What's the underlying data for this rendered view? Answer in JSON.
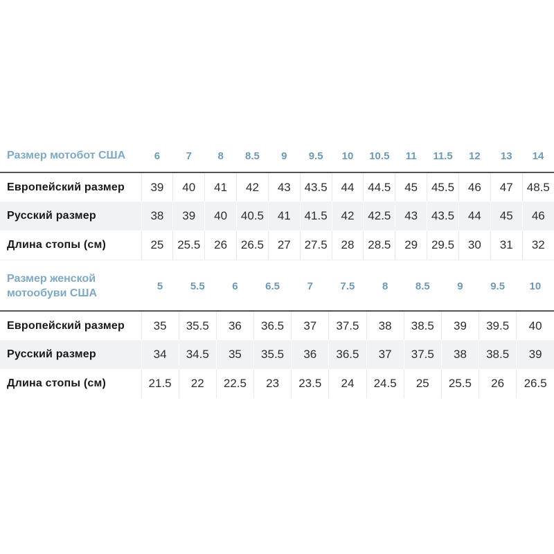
{
  "page": {
    "background": "#ffffff",
    "description": "Motorcycle boot size conversion tables (US / European / Russian sizes and foot length)"
  },
  "colors": {
    "header_label_blue": "#7fa9c3",
    "header_number_blue": "#6e99b3",
    "header_separator_dark": "#4d5352",
    "row_stripe_gray": "#f1f2f4",
    "cell_divider_gray": "#e7e9eb",
    "label_text": "#17181a",
    "value_text": "#2d2d30"
  },
  "tables": [
    {
      "header_label": "Размер мотобот США",
      "columns": [
        "6",
        "7",
        "8",
        "8.5",
        "9",
        "9.5",
        "10",
        "10.5",
        "11",
        "11.5",
        "12",
        "13",
        "14"
      ],
      "rows": [
        {
          "label": "Европейский размер",
          "values": [
            "39",
            "40",
            "41",
            "42",
            "43",
            "43.5",
            "44",
            "44.5",
            "45",
            "45.5",
            "46",
            "47",
            "48.5"
          ]
        },
        {
          "label": "Русский размер",
          "values": [
            "38",
            "39",
            "40",
            "40.5",
            "41",
            "41.5",
            "42",
            "42.5",
            "43",
            "43.5",
            "44",
            "45",
            "46"
          ]
        },
        {
          "label": "Длина стопы (см)",
          "values": [
            "25",
            "25.5",
            "26",
            "26.5",
            "27",
            "27.5",
            "28",
            "28.5",
            "29",
            "29.5",
            "30",
            "31",
            "32"
          ]
        }
      ]
    },
    {
      "header_label": "Размер женской мотообуви США",
      "columns": [
        "5",
        "5.5",
        "6",
        "6.5",
        "7",
        "7.5",
        "8",
        "8.5",
        "9",
        "9.5",
        "10"
      ],
      "rows": [
        {
          "label": "Европейский размер",
          "values": [
            "35",
            "35.5",
            "36",
            "36.5",
            "37",
            "37.5",
            "38",
            "38.5",
            "39",
            "39.5",
            "40"
          ]
        },
        {
          "label": "Русский размер",
          "values": [
            "34",
            "34.5",
            "35",
            "35.5",
            "36",
            "36.5",
            "37",
            "37.5",
            "38",
            "38.5",
            "39"
          ]
        },
        {
          "label": "Длина стопы (см)",
          "values": [
            "21.5",
            "22",
            "22.5",
            "23",
            "23.5",
            "24",
            "24.5",
            "25",
            "25.5",
            "26",
            "26.5"
          ]
        }
      ]
    }
  ],
  "chart_data": [
    {
      "type": "table",
      "title": "Размер мотобот США",
      "columns": [
        "Размер мотобот США",
        "6",
        "7",
        "8",
        "8.5",
        "9",
        "9.5",
        "10",
        "10.5",
        "11",
        "11.5",
        "12",
        "13",
        "14"
      ],
      "rows": [
        [
          "Европейский размер",
          39,
          40,
          41,
          42,
          43,
          43.5,
          44,
          44.5,
          45,
          45.5,
          46,
          47,
          48.5
        ],
        [
          "Русский размер",
          38,
          39,
          40,
          40.5,
          41,
          41.5,
          42,
          42.5,
          43,
          43.5,
          44,
          45,
          46
        ],
        [
          "Длина стопы (см)",
          25,
          25.5,
          26,
          26.5,
          27,
          27.5,
          28,
          28.5,
          29,
          29.5,
          30,
          31,
          32
        ]
      ]
    },
    {
      "type": "table",
      "title": "Размер женской мотообуви США",
      "columns": [
        "Размер женской мотообуви США",
        "5",
        "5.5",
        "6",
        "6.5",
        "7",
        "7.5",
        "8",
        "8.5",
        "9",
        "9.5",
        "10"
      ],
      "rows": [
        [
          "Европейский размер",
          35,
          35.5,
          36,
          36.5,
          37,
          37.5,
          38,
          38.5,
          39,
          39.5,
          40
        ],
        [
          "Русский размер",
          34,
          34.5,
          35,
          35.5,
          36,
          36.5,
          37,
          37.5,
          38,
          38.5,
          39
        ],
        [
          "Длина стопы (см)",
          21.5,
          22,
          22.5,
          23,
          23.5,
          24,
          24.5,
          25,
          25.5,
          26,
          26.5
        ]
      ]
    }
  ]
}
